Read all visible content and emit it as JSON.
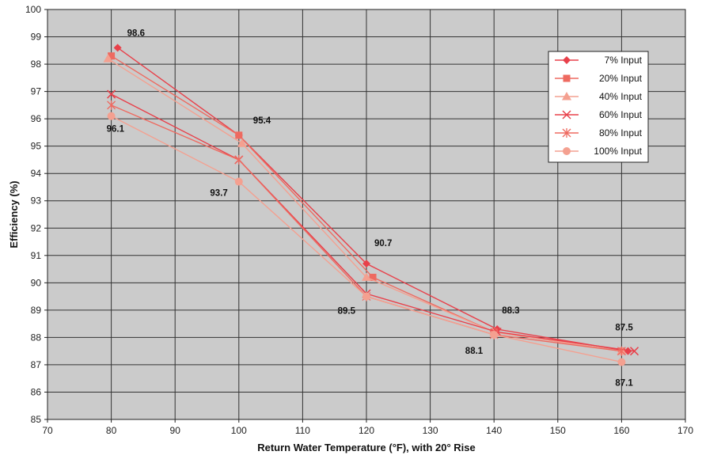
{
  "chart_data": {
    "type": "line",
    "title": "",
    "xlabel": "Return Water Temperature (°F), with 20° Rise",
    "ylabel": "Efficiency (%)",
    "xlim": [
      70,
      170
    ],
    "ylim": [
      85,
      100
    ],
    "x_ticks": [
      "70",
      "80",
      "90",
      "100",
      "110",
      "120",
      "130",
      "140",
      "150",
      "160",
      "170"
    ],
    "y_ticks": [
      "85",
      "86",
      "87",
      "88",
      "89",
      "90",
      "91",
      "92",
      "93",
      "94",
      "95",
      "96",
      "97",
      "98",
      "99",
      "100"
    ],
    "grid": true,
    "legend_position": "top-right",
    "series": [
      {
        "name": "7% Input",
        "marker": "diamond",
        "color": "#e8404a",
        "x": [
          81,
          100,
          120,
          140.5,
          161
        ],
        "y": [
          98.6,
          95.4,
          90.7,
          88.3,
          87.5
        ]
      },
      {
        "name": "20% Input",
        "marker": "square",
        "color": "#ee6a60",
        "x": [
          80,
          100,
          121,
          140,
          160
        ],
        "y": [
          98.3,
          95.4,
          90.2,
          88.2,
          87.5
        ]
      },
      {
        "name": "40% Input",
        "marker": "triangle",
        "color": "#f4a090",
        "x": [
          79.5,
          100.5,
          120,
          140,
          160
        ],
        "y": [
          98.2,
          95.1,
          90.2,
          88.2,
          87.5
        ]
      },
      {
        "name": "60% Input",
        "marker": "x",
        "color": "#e8404a",
        "x": [
          80,
          100,
          120,
          140.5,
          162
        ],
        "y": [
          96.9,
          94.5,
          89.6,
          88.2,
          87.5
        ]
      },
      {
        "name": "80% Input",
        "marker": "star",
        "color": "#ee6a60",
        "x": [
          80,
          100,
          120,
          140,
          160
        ],
        "y": [
          96.5,
          94.5,
          89.5,
          88.1,
          87.5
        ]
      },
      {
        "name": "100% Input",
        "marker": "circle",
        "color": "#f4a090",
        "x": [
          80,
          100,
          120,
          140,
          160
        ],
        "y": [
          96.1,
          93.7,
          89.5,
          88.1,
          87.1
        ]
      }
    ],
    "annotations": [
      {
        "text": "98.6",
        "x": 81,
        "y": 98.6
      },
      {
        "text": "96.1",
        "x": 80,
        "y": 96.1
      },
      {
        "text": "95.4",
        "x": 100,
        "y": 95.4
      },
      {
        "text": "93.7",
        "x": 100,
        "y": 93.7
      },
      {
        "text": "90.7",
        "x": 120,
        "y": 90.7
      },
      {
        "text": "89.5",
        "x": 120,
        "y": 89.5
      },
      {
        "text": "88.3",
        "x": 140,
        "y": 88.3
      },
      {
        "text": "88.1",
        "x": 140,
        "y": 88.1
      },
      {
        "text": "87.5",
        "x": 160,
        "y": 87.5
      },
      {
        "text": "87.1",
        "x": 160,
        "y": 87.1
      }
    ]
  }
}
